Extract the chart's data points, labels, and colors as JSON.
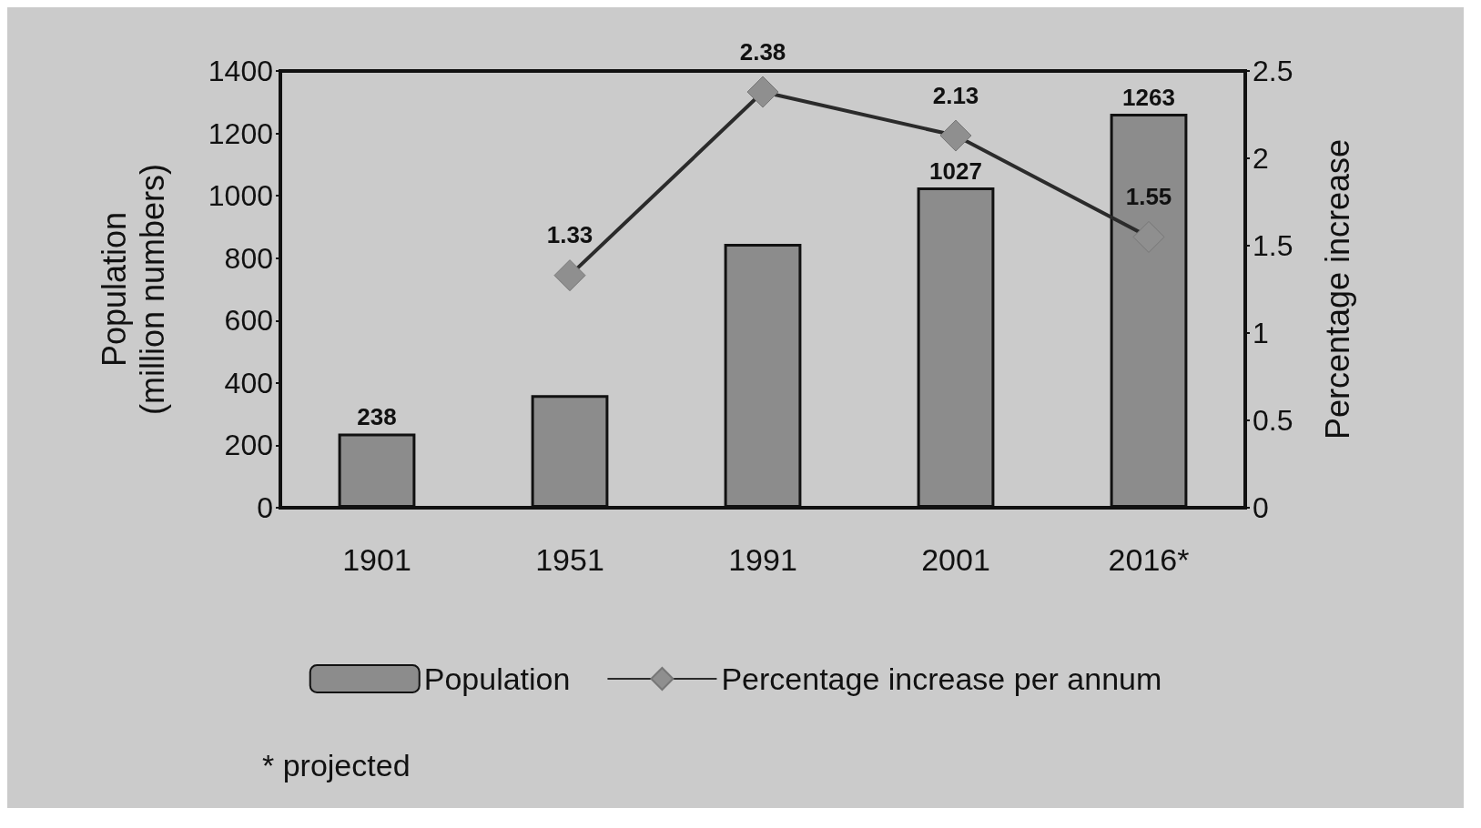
{
  "chart_data": {
    "type": "bar",
    "categories": [
      "1901",
      "1951",
      "1991",
      "2001",
      "2016*"
    ],
    "ylabel": "Population\n(million numbers)",
    "y2label": "Percentage increase",
    "series": [
      {
        "name": "Population",
        "color": "#8c8c8c",
        "values": [
          238,
          361,
          846,
          1027,
          1263
        ],
        "value_labels": [
          "238",
          null,
          null,
          "1027",
          "1263"
        ]
      },
      {
        "name": "Percentage increase per annum",
        "type": "line",
        "axis": "y2",
        "color": "#2b2b2b",
        "values": [
          null,
          1.33,
          2.38,
          2.13,
          1.55
        ],
        "value_labels": [
          null,
          "1.33",
          "2.38",
          "2.13",
          "1.55"
        ]
      }
    ],
    "ylim": [
      0,
      1400
    ],
    "yticks": [
      0,
      200,
      400,
      600,
      800,
      1000,
      1200,
      1400
    ],
    "y2lim": [
      0,
      2.5
    ],
    "y2ticks": [
      0,
      0.5,
      1,
      1.5,
      2,
      2.5
    ],
    "marker": "diamond",
    "grid": false,
    "legend": "bottom",
    "annotations": [
      "* projected"
    ]
  }
}
